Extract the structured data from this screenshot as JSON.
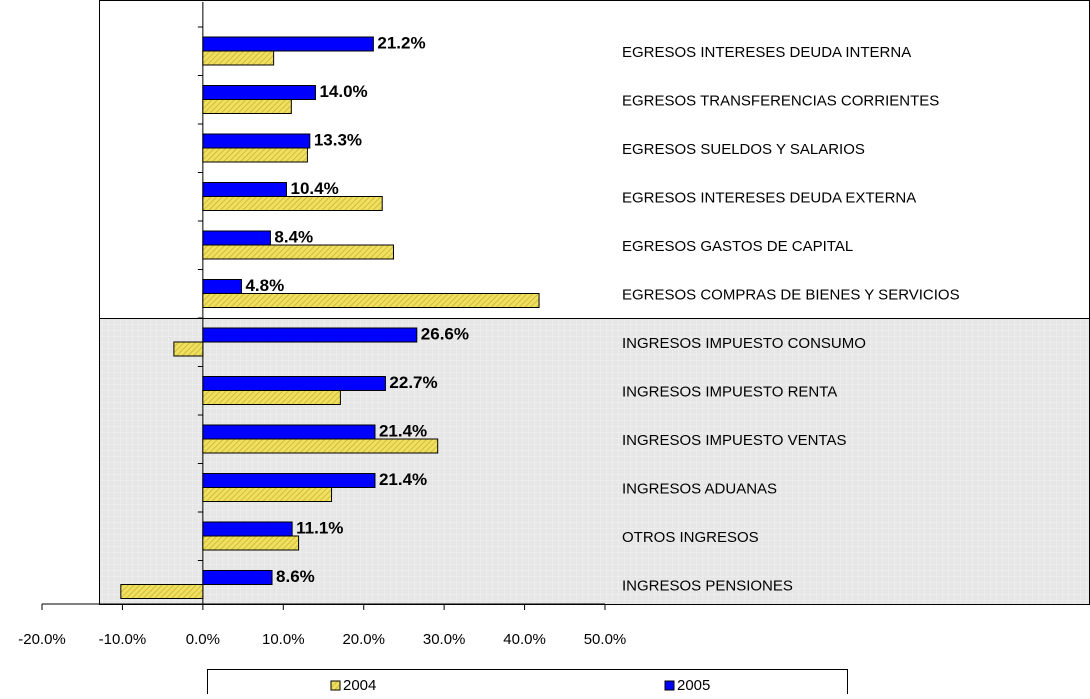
{
  "chart_data": {
    "type": "bar",
    "orientation": "horizontal",
    "categories": [
      "EGRESOS INTERESES DEUDA INTERNA",
      "EGRESOS TRANSFERENCIAS CORRIENTES",
      "EGRESOS SUELDOS Y SALARIOS",
      "EGRESOS INTERESES DEUDA EXTERNA",
      "EGRESOS GASTOS DE CAPITAL",
      "EGRESOS COMPRAS DE BIENES Y SERVICIOS",
      "INGRESOS IMPUESTO CONSUMO",
      "INGRESOS IMPUESTO RENTA",
      "INGRESOS IMPUESTO VENTAS",
      "INGRESOS ADUANAS",
      "OTROS INGRESOS",
      "INGRESOS PENSIONES"
    ],
    "series": [
      {
        "name": "2004",
        "color": "#f0e060",
        "values": [
          8.8,
          11.0,
          13.0,
          22.3,
          23.7,
          41.8,
          -3.6,
          17.1,
          29.2,
          16.0,
          11.9,
          -10.2
        ]
      },
      {
        "name": "2005",
        "color": "#0000ff",
        "values": [
          21.2,
          14.0,
          13.3,
          10.4,
          8.4,
          4.8,
          26.6,
          22.7,
          21.4,
          21.4,
          11.1,
          8.6
        ],
        "value_labels": [
          "21.2%",
          "14.0%",
          "13.3%",
          "10.4%",
          "8.4%",
          "4.8%",
          "26.6%",
          "22.7%",
          "21.4%",
          "21.4%",
          "11.1%",
          "8.6%"
        ]
      }
    ],
    "xlim": [
      -20,
      50
    ],
    "xticks": [
      {
        "value": -20,
        "label": "-20.0%"
      },
      {
        "value": -10,
        "label": "-10.0%"
      },
      {
        "value": 0,
        "label": "0.0%"
      },
      {
        "value": 10,
        "label": "10.0%"
      },
      {
        "value": 20,
        "label": "20.0%"
      },
      {
        "value": 30,
        "label": "30.0%"
      },
      {
        "value": 40,
        "label": "40.0%"
      },
      {
        "value": 50,
        "label": "50.0%"
      }
    ],
    "legend": "bottom"
  }
}
